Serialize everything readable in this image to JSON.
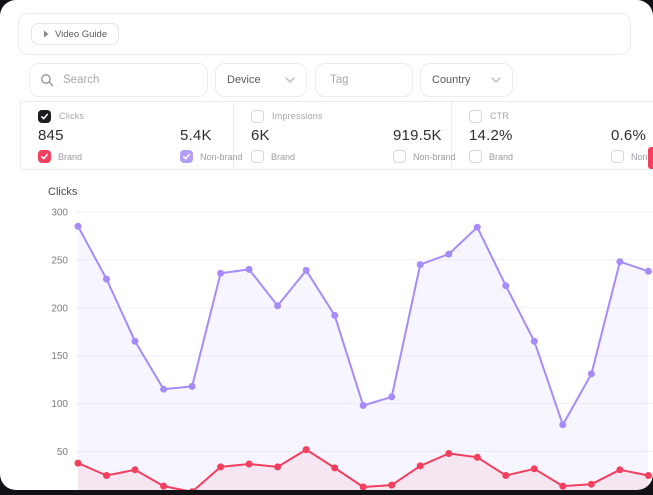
{
  "video_guide": {
    "label": "Video Guide"
  },
  "filters": {
    "search_placeholder": "Search",
    "device_label": "Device",
    "tag_placeholder": "Tag",
    "country_label": "Country"
  },
  "metrics": [
    {
      "name": "Clicks",
      "checked": true,
      "brand_value": "845",
      "nonbrand_value": "5.4K",
      "brand_label": "Brand",
      "nonbrand_label": "Non-brand",
      "brand_checked": true,
      "nonbrand_checked": true
    },
    {
      "name": "Impressions",
      "checked": false,
      "brand_value": "6K",
      "nonbrand_value": "919.5K",
      "brand_label": "Brand",
      "nonbrand_label": "Non-brand",
      "brand_checked": false,
      "nonbrand_checked": false
    },
    {
      "name": "CTR",
      "checked": false,
      "brand_value": "14.2%",
      "nonbrand_value": "0.6%",
      "brand_label": "Brand",
      "nonbrand_label": "Non-brand",
      "brand_checked": false,
      "nonbrand_checked": false
    }
  ],
  "colors": {
    "accent_purple": "#a78bfa",
    "accent_red": "#f43f5e",
    "checkbox_black": "#1c1c21",
    "checkbox_purple": "#b39ef5",
    "purple_fill": "rgba(167,139,250,0.09)",
    "red_fill": "rgba(244,63,94,0.08)",
    "grid_line": "#f1f1f5",
    "border": "#ececf0"
  },
  "chart_data": {
    "type": "line",
    "title": "Clicks",
    "x": [
      1,
      2,
      3,
      4,
      5,
      6,
      7,
      8,
      9,
      10,
      11,
      12,
      13,
      14,
      15,
      16,
      17,
      18,
      19,
      20,
      21
    ],
    "x_labels_visible": false,
    "y_ticks": [
      50,
      100,
      150,
      200,
      250,
      300
    ],
    "ylim": [
      0,
      310
    ],
    "grid": true,
    "area_fill": true,
    "legend_position": "none",
    "series": [
      {
        "name": "Non-brand",
        "color": "#a78bfa",
        "fill": "rgba(167,139,250,0.09)",
        "values": [
          285,
          230,
          165,
          115,
          118,
          236,
          240,
          202,
          239,
          192,
          98,
          107,
          245,
          256,
          284,
          223,
          165,
          78,
          131,
          248,
          238
        ]
      },
      {
        "name": "Brand",
        "color": "#f43f5e",
        "fill": "rgba(244,63,94,0.08)",
        "values": [
          38,
          25,
          31,
          14,
          8,
          34,
          37,
          34,
          52,
          33,
          13,
          15,
          35,
          48,
          44,
          25,
          32,
          14,
          16,
          31,
          25
        ]
      }
    ]
  }
}
